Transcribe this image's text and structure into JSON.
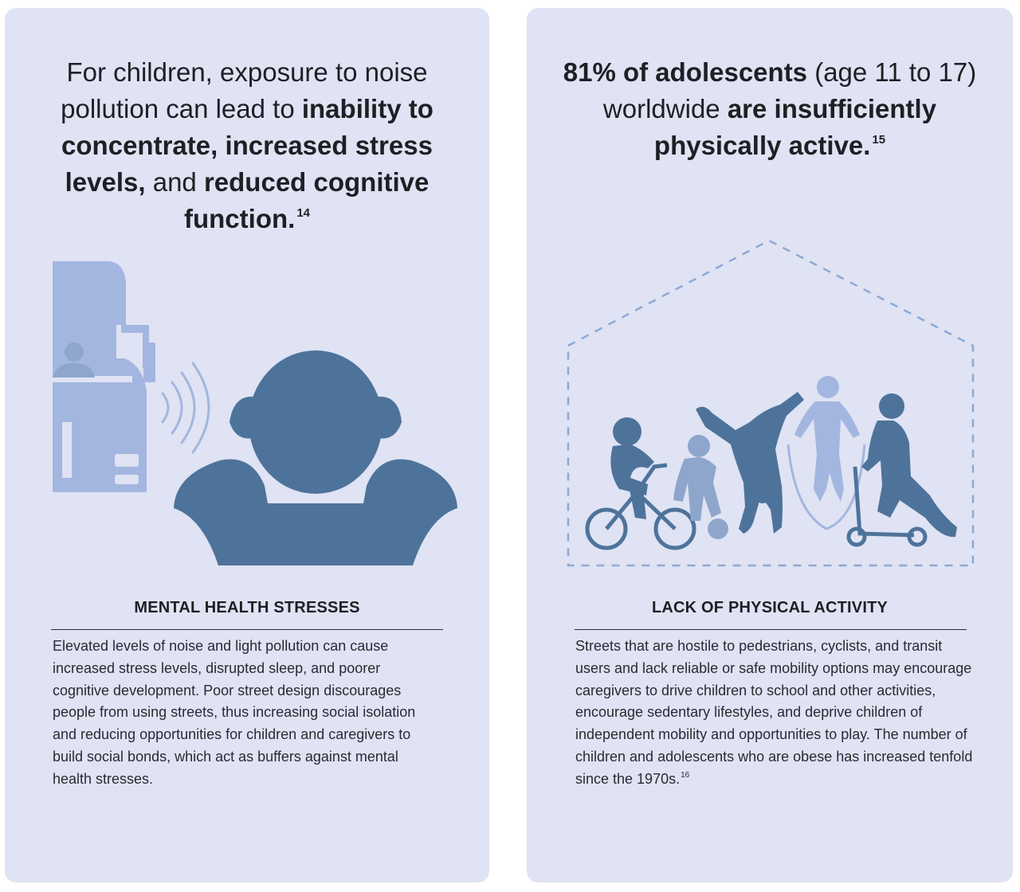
{
  "left_panel": {
    "headline": {
      "p1": "For children, exposure to noise pollution can lead to ",
      "b1": "inability to concentrate, increased stress levels,",
      "p2": " and ",
      "b2": "reduced cognitive function.",
      "ref": "14"
    },
    "section_title": "MENTAL HEALTH STRESSES",
    "body": "Elevated levels of noise and light pollution can cause increased stress levels, disrupted sleep, and poorer cognitive development. Poor street design discourages people from using streets, thus increasing social isolation and reducing opportunities for children and caregivers to build social bonds, which act as buffers against mental health stresses.",
    "illustration": [
      "truck-icon",
      "driver-icon",
      "sound-waves-icon",
      "child-covering-ears-icon"
    ]
  },
  "right_panel": {
    "headline": {
      "b1": "81% of adolescents",
      "p1": " (age 11 to 17) worldwide ",
      "b2": "are insufficiently physically active.",
      "ref": "15"
    },
    "section_title": "LACK OF PHYSICAL ACTIVITY",
    "body": "Streets that are hostile to pedestrians, cyclists, and transit users and lack reliable or safe mobility options may encourage caregivers to drive children to school and other activities, encourage sedentary lifestyles, and deprive children of independent mobility and opportunities to play. The number of children and adolescents who are obese has increased tenfold since the 1970s.",
    "ref": "16",
    "illustration": [
      "house-outline-icon",
      "child-on-bike-icon",
      "child-with-ball-icon",
      "child-cartwheel-icon",
      "child-jump-rope-icon",
      "child-on-scooter-icon"
    ]
  },
  "colors": {
    "card_bg": "#dfe3f3",
    "dark_figure": "#4e739b",
    "mid_figure": "#8ea6cc",
    "light_figure": "#a3b6e0",
    "dashed_outline": "#8da9d6"
  }
}
